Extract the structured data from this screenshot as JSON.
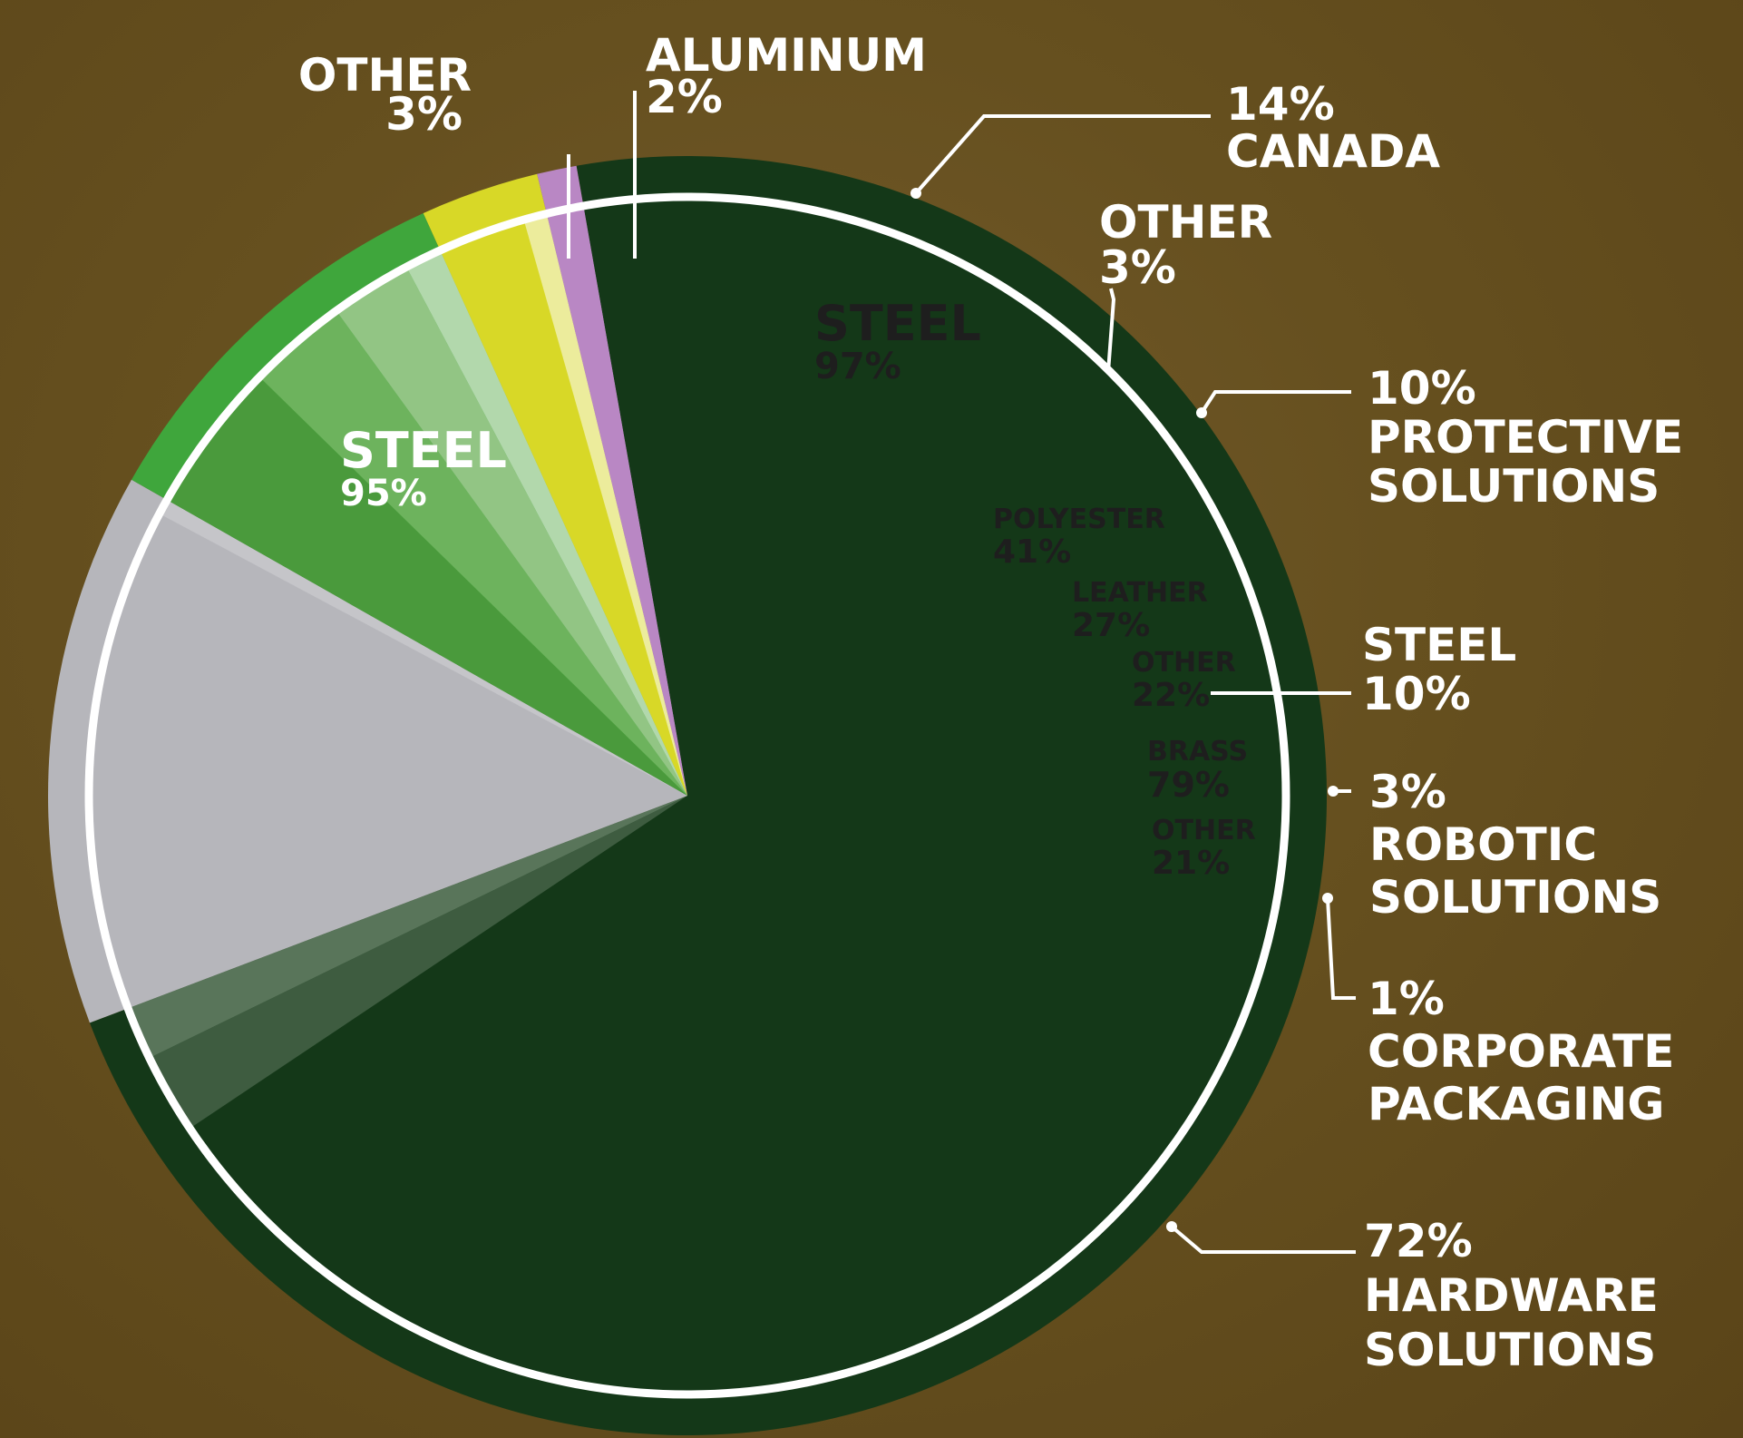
{
  "chart_data": {
    "type": "pie",
    "segments": [
      {
        "label": "HARDWARE SOLUTIONS",
        "value": 72,
        "value_label": "72%",
        "label_lines": [
          "HARDWARE",
          "SOLUTIONS"
        ],
        "color": "#143818",
        "materials": [
          {
            "label": "STEEL",
            "value": 95,
            "value_label": "95%",
            "color": "#143818"
          },
          {
            "label": "OTHER",
            "value": 3,
            "value_label": "3%",
            "color": "#3e5c40"
          },
          {
            "label": "ALUMINUM",
            "value": 2,
            "value_label": "2%",
            "color": "#59755a"
          }
        ]
      },
      {
        "label": "CANADA",
        "value": 14,
        "value_label": "14%",
        "label_lines": [
          "CANADA"
        ],
        "color": "#b6b6bb",
        "materials": [
          {
            "label": "STEEL",
            "value": 97,
            "value_label": "97%",
            "color": "#b6b6bb"
          },
          {
            "label": "OTHER",
            "value": 3,
            "value_label": "3%",
            "color": "#c5c5c9"
          }
        ]
      },
      {
        "label": "PROTECTIVE SOLUTIONS",
        "value": 10,
        "value_label": "10%",
        "label_lines": [
          "PROTECTIVE",
          "SOLUTIONS"
        ],
        "color": "#3fa63c",
        "materials": [
          {
            "label": "POLYESTER",
            "value": 41,
            "value_label": "41%",
            "color": "#4a9a3c"
          },
          {
            "label": "LEATHER",
            "value": 27,
            "value_label": "27%",
            "color": "#6db35d"
          },
          {
            "label": "OTHER",
            "value": 22,
            "value_label": "22%",
            "color": "#92c584"
          },
          {
            "label": "STEEL",
            "value": 10,
            "value_label": "10%",
            "color": "#b2d8ac"
          }
        ]
      },
      {
        "label": "ROBOTIC SOLUTIONS",
        "value": 3,
        "value_label": "3%",
        "label_lines": [
          "ROBOTIC",
          "SOLUTIONS"
        ],
        "color": "#d8d827",
        "materials": [
          {
            "label": "BRASS",
            "value": 79,
            "value_label": "79%",
            "color": "#d8d827"
          },
          {
            "label": "OTHER",
            "value": 21,
            "value_label": "21%",
            "color": "#ecec9c"
          }
        ]
      },
      {
        "label": "CORPORATE PACKAGING",
        "value": 1,
        "value_label": "1%",
        "label_lines": [
          "CORPORATE",
          "PACKAGING"
        ],
        "color": "#b987c4",
        "materials": []
      }
    ],
    "ring_color": "#ffffff",
    "outer_text_color": "#ffffff",
    "inner_text_dark": "#1e1e1e",
    "inner_text_light": "#ffffff"
  }
}
